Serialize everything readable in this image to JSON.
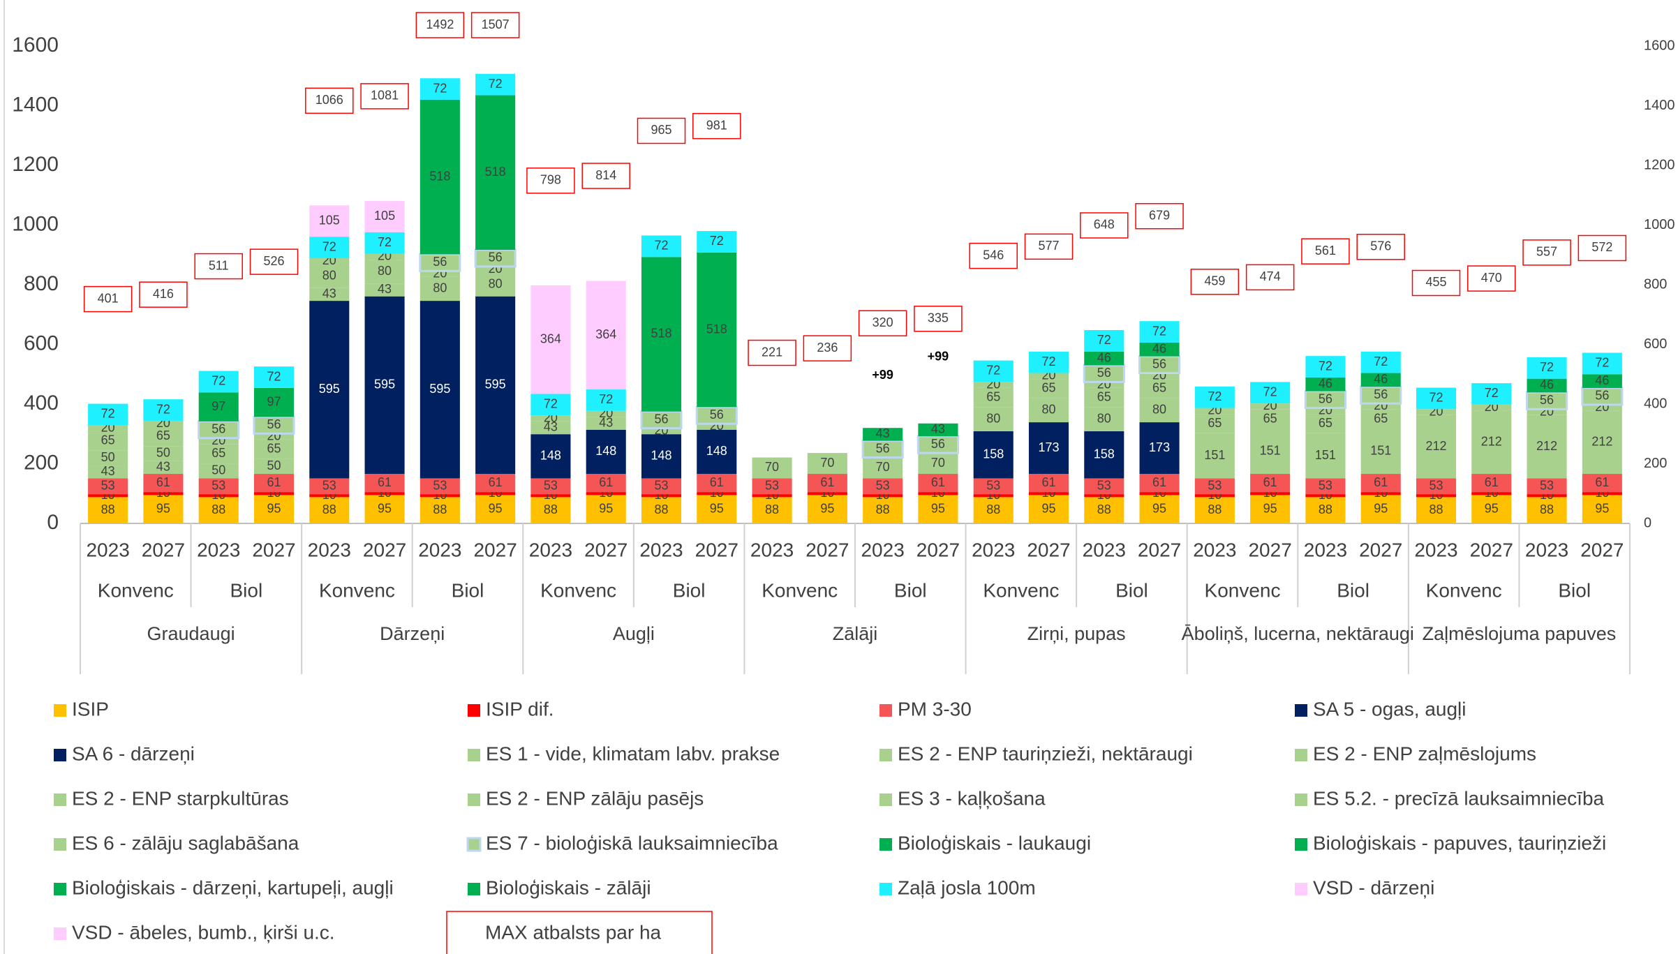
{
  "chart_data": {
    "type": "bar",
    "stacked": true,
    "ylim": [
      0,
      1600
    ],
    "yticks": [
      0,
      200,
      400,
      600,
      800,
      1000,
      1200,
      1400,
      1600
    ],
    "y2lim": [
      0,
      1600
    ],
    "y2ticks": [
      0,
      200,
      400,
      600,
      800,
      1000,
      1200,
      1400,
      1600
    ],
    "categories": [
      "2023",
      "2027",
      "2023",
      "2027",
      "2023",
      "2027",
      "2023",
      "2027",
      "2023",
      "2027",
      "2023",
      "2027",
      "2023",
      "2027",
      "2023",
      "2027",
      "2023",
      "2027",
      "2023",
      "2027",
      "2023",
      "2027",
      "2023",
      "2027",
      "2023",
      "2027",
      "2023",
      "2027"
    ],
    "systems": [
      "Konvenc",
      "Biol",
      "Konvenc",
      "Biol",
      "Konvenc",
      "Biol",
      "Konvenc",
      "Biol",
      "Konvenc",
      "Biol",
      "Konvenc",
      "Biol",
      "Konvenc",
      "Biol"
    ],
    "groups": [
      "Graudaugi",
      "Dārzeņi",
      "Augļi",
      "Zālāji",
      "Zirņi, pupas",
      "Āboliņš, lucerna, nektāraugi",
      "Zaļmēslojuma papuves"
    ],
    "series": [
      {
        "name": "ISIP",
        "color": "#ffc000",
        "values": [
          88,
          95,
          88,
          95,
          88,
          95,
          88,
          95,
          88,
          95,
          88,
          95,
          88,
          95,
          88,
          95,
          88,
          95,
          88,
          95,
          88,
          95,
          88,
          95,
          88,
          95,
          88,
          95
        ]
      },
      {
        "name": "ISIP dif.",
        "color": "#ff0000",
        "values": [
          10,
          10,
          10,
          10,
          10,
          10,
          10,
          10,
          10,
          10,
          10,
          10,
          10,
          10,
          10,
          10,
          10,
          10,
          10,
          10,
          10,
          10,
          10,
          10,
          10,
          10,
          10,
          10
        ]
      },
      {
        "name": "PM 3-30",
        "color": "#f65555",
        "values": [
          53,
          61,
          53,
          61,
          53,
          61,
          53,
          61,
          53,
          61,
          53,
          61,
          53,
          61,
          53,
          61,
          53,
          61,
          53,
          61,
          53,
          61,
          53,
          61,
          53,
          61,
          53,
          61
        ]
      },
      {
        "name": "SA 5 - ogas, augļi",
        "color": "#002060",
        "values": [
          null,
          null,
          null,
          null,
          null,
          null,
          null,
          null,
          148,
          148,
          148,
          148,
          null,
          null,
          null,
          null,
          158,
          173,
          158,
          173,
          null,
          null,
          null,
          null,
          null,
          null,
          null,
          null
        ]
      },
      {
        "name": "SA 6 - dārzeņi",
        "color": "#002060",
        "values": [
          null,
          null,
          null,
          null,
          595,
          595,
          595,
          595,
          null,
          null,
          null,
          null,
          null,
          null,
          null,
          null,
          null,
          null,
          null,
          null,
          null,
          null,
          null,
          null,
          null,
          null,
          null,
          null
        ]
      },
      {
        "name": "ES 1 - vide, klimatam labv. prakse",
        "color": "#a9d18e",
        "values": [
          43,
          43,
          null,
          null,
          43,
          43,
          null,
          null,
          43,
          43,
          null,
          null,
          null,
          null,
          null,
          null,
          null,
          null,
          null,
          null,
          null,
          null,
          null,
          null,
          null,
          null,
          null,
          null
        ]
      },
      {
        "name": "ES 2 - ENP tauriņzieži, nektāraugi",
        "color": "#a9d18e",
        "values": [
          null,
          null,
          null,
          null,
          null,
          null,
          null,
          null,
          null,
          null,
          null,
          null,
          null,
          null,
          null,
          null,
          80,
          80,
          80,
          80,
          151,
          151,
          151,
          151,
          null,
          null,
          null,
          null
        ]
      },
      {
        "name": "ES 2 - ENP zaļmēslojums",
        "color": "#a9d18e",
        "values": [
          null,
          null,
          null,
          null,
          null,
          null,
          null,
          null,
          null,
          null,
          null,
          null,
          null,
          null,
          null,
          null,
          null,
          null,
          null,
          null,
          null,
          null,
          null,
          null,
          212,
          212,
          212,
          212
        ]
      },
      {
        "name": "ES 2 - ENP starpkultūras",
        "color": "#a9d18e",
        "values": [
          50,
          50,
          50,
          50,
          80,
          80,
          80,
          80,
          null,
          null,
          null,
          null,
          null,
          null,
          null,
          null,
          null,
          null,
          null,
          null,
          null,
          null,
          null,
          null,
          null,
          null,
          null,
          null
        ]
      },
      {
        "name": "ES 2 - ENP zālāju pasējs",
        "color": "#a9d18e",
        "values": [
          null,
          null,
          null,
          null,
          null,
          null,
          null,
          null,
          null,
          null,
          null,
          null,
          null,
          null,
          null,
          null,
          null,
          null,
          null,
          null,
          null,
          null,
          null,
          null,
          null,
          null,
          null,
          null
        ]
      },
      {
        "name": "ES 3 - kaļķošana",
        "color": "#a9d18e",
        "values": [
          65,
          65,
          65,
          65,
          null,
          null,
          null,
          null,
          null,
          null,
          null,
          null,
          null,
          null,
          null,
          null,
          65,
          65,
          65,
          65,
          65,
          65,
          65,
          65,
          null,
          null,
          null,
          null
        ]
      },
      {
        "name": "ES 5.2. - precīzā lauksaimniecība",
        "color": "#a9d18e",
        "values": [
          20,
          20,
          20,
          20,
          20,
          20,
          20,
          20,
          20,
          20,
          20,
          20,
          null,
          null,
          null,
          null,
          20,
          20,
          20,
          20,
          20,
          20,
          20,
          20,
          20,
          20,
          20,
          20
        ]
      },
      {
        "name": "ES 6 - zālāju saglabāšana",
        "color": "#a9d18e",
        "values": [
          null,
          null,
          null,
          null,
          null,
          null,
          null,
          null,
          null,
          null,
          null,
          null,
          70,
          70,
          70,
          70,
          null,
          null,
          null,
          null,
          null,
          null,
          null,
          null,
          null,
          null,
          null,
          null
        ]
      },
      {
        "name": "ES 7 - bioloģiskā lauksaimniecība",
        "color": "#a9d18e",
        "border": "#bdd7ee",
        "values": [
          null,
          null,
          56,
          56,
          null,
          null,
          56,
          56,
          null,
          null,
          56,
          56,
          null,
          null,
          56,
          56,
          null,
          null,
          56,
          56,
          null,
          null,
          56,
          56,
          null,
          null,
          56,
          56
        ]
      },
      {
        "name": "Bioloģiskais - laukaugi",
        "color": "#00b050",
        "values": [
          null,
          null,
          97,
          97,
          null,
          null,
          null,
          null,
          null,
          null,
          null,
          null,
          null,
          null,
          null,
          null,
          null,
          null,
          null,
          null,
          null,
          null,
          null,
          null,
          null,
          null,
          null,
          null
        ]
      },
      {
        "name": "Bioloģiskais - papuves, tauriņzieži",
        "color": "#00b050",
        "values": [
          null,
          null,
          null,
          null,
          null,
          null,
          null,
          null,
          null,
          null,
          null,
          null,
          null,
          null,
          null,
          null,
          null,
          null,
          46,
          46,
          null,
          null,
          46,
          46,
          null,
          null,
          46,
          46
        ]
      },
      {
        "name": "Bioloģiskais - dārzeņi, kartupeļi, augļi",
        "color": "#00b050",
        "values": [
          null,
          null,
          null,
          null,
          null,
          null,
          518,
          518,
          null,
          null,
          518,
          518,
          null,
          null,
          null,
          null,
          null,
          null,
          null,
          null,
          null,
          null,
          null,
          null,
          null,
          null,
          null,
          null
        ]
      },
      {
        "name": "Bioloģiskais - zālāji",
        "color": "#00b050",
        "values": [
          null,
          null,
          null,
          null,
          null,
          null,
          null,
          null,
          null,
          null,
          null,
          null,
          null,
          null,
          43,
          43,
          null,
          null,
          null,
          null,
          null,
          null,
          null,
          null,
          null,
          null,
          null,
          null
        ]
      },
      {
        "name": "Zaļā josla 100m",
        "color": "#1ff0ff",
        "values": [
          72,
          72,
          72,
          72,
          72,
          72,
          72,
          72,
          72,
          72,
          72,
          72,
          null,
          null,
          null,
          null,
          72,
          72,
          72,
          72,
          72,
          72,
          72,
          72,
          72,
          72,
          72,
          72
        ]
      },
      {
        "name": "VSD - dārzeņi",
        "color": "#ffccff",
        "values": [
          null,
          null,
          null,
          null,
          105,
          105,
          null,
          null,
          null,
          null,
          null,
          null,
          null,
          null,
          null,
          null,
          null,
          null,
          null,
          null,
          null,
          null,
          null,
          null,
          null,
          null,
          null,
          null
        ]
      },
      {
        "name": "VSD - ābeles, bumb., ķirši u.c.",
        "color": "#ffccff",
        "values": [
          null,
          null,
          null,
          null,
          null,
          null,
          null,
          null,
          364,
          364,
          null,
          null,
          null,
          null,
          null,
          null,
          null,
          null,
          null,
          null,
          null,
          null,
          null,
          null,
          null,
          null,
          null,
          null
        ]
      }
    ],
    "max_totals": {
      "name": "MAX atbalsts par ha",
      "color": "#ff0000",
      "values": [
        401,
        416,
        511,
        526,
        1066,
        1081,
        1492,
        1507,
        798,
        814,
        965,
        981,
        221,
        236,
        320,
        335,
        546,
        577,
        648,
        679,
        459,
        474,
        561,
        576,
        455,
        470,
        557,
        572
      ]
    },
    "notes": [
      null,
      null,
      null,
      null,
      null,
      null,
      null,
      null,
      null,
      null,
      null,
      null,
      null,
      null,
      "+99",
      "+99",
      null,
      null,
      null,
      null,
      null,
      null,
      null,
      null,
      null,
      null,
      null,
      null
    ]
  }
}
